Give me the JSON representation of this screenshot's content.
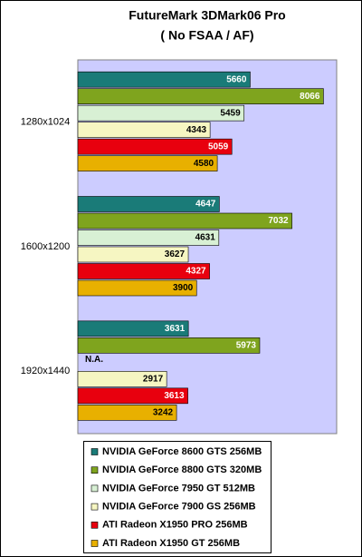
{
  "chart_data": {
    "type": "bar",
    "orientation": "horizontal",
    "title": "FutureMark 3DMark06 Pro",
    "subtitle": "( No FSAA / AF)",
    "categories": [
      "1280x1024",
      "1600x1200",
      "1920x1440"
    ],
    "xlim": [
      0,
      8500
    ],
    "plot_background": "#ccccff",
    "series": [
      {
        "name": "NVIDIA GeForce 8600 GTS 256MB",
        "color": "#1a7b78",
        "values": [
          5660,
          4647,
          3631
        ]
      },
      {
        "name": "NVIDIA GeForce 8800 GTS 320MB",
        "color": "#7fa41e",
        "values": [
          8066,
          7032,
          5973
        ]
      },
      {
        "name": "NVIDIA GeForce 7950 GT 512MB",
        "color": "#d8f0d4",
        "values": [
          5459,
          4631,
          null
        ],
        "value_labels": [
          null,
          null,
          "N.A."
        ]
      },
      {
        "name": "NVIDIA GeForce 7900 GS 256MB",
        "color": "#f6f6c2",
        "values": [
          4343,
          3627,
          2917
        ]
      },
      {
        "name": "ATI Radeon X1950 PRO 256MB",
        "color": "#e8000e",
        "values": [
          5059,
          4327,
          3613
        ]
      },
      {
        "name": "ATI Radeon X1950 GT 256MB",
        "color": "#e8b000",
        "values": [
          4580,
          3900,
          3242
        ]
      }
    ]
  }
}
